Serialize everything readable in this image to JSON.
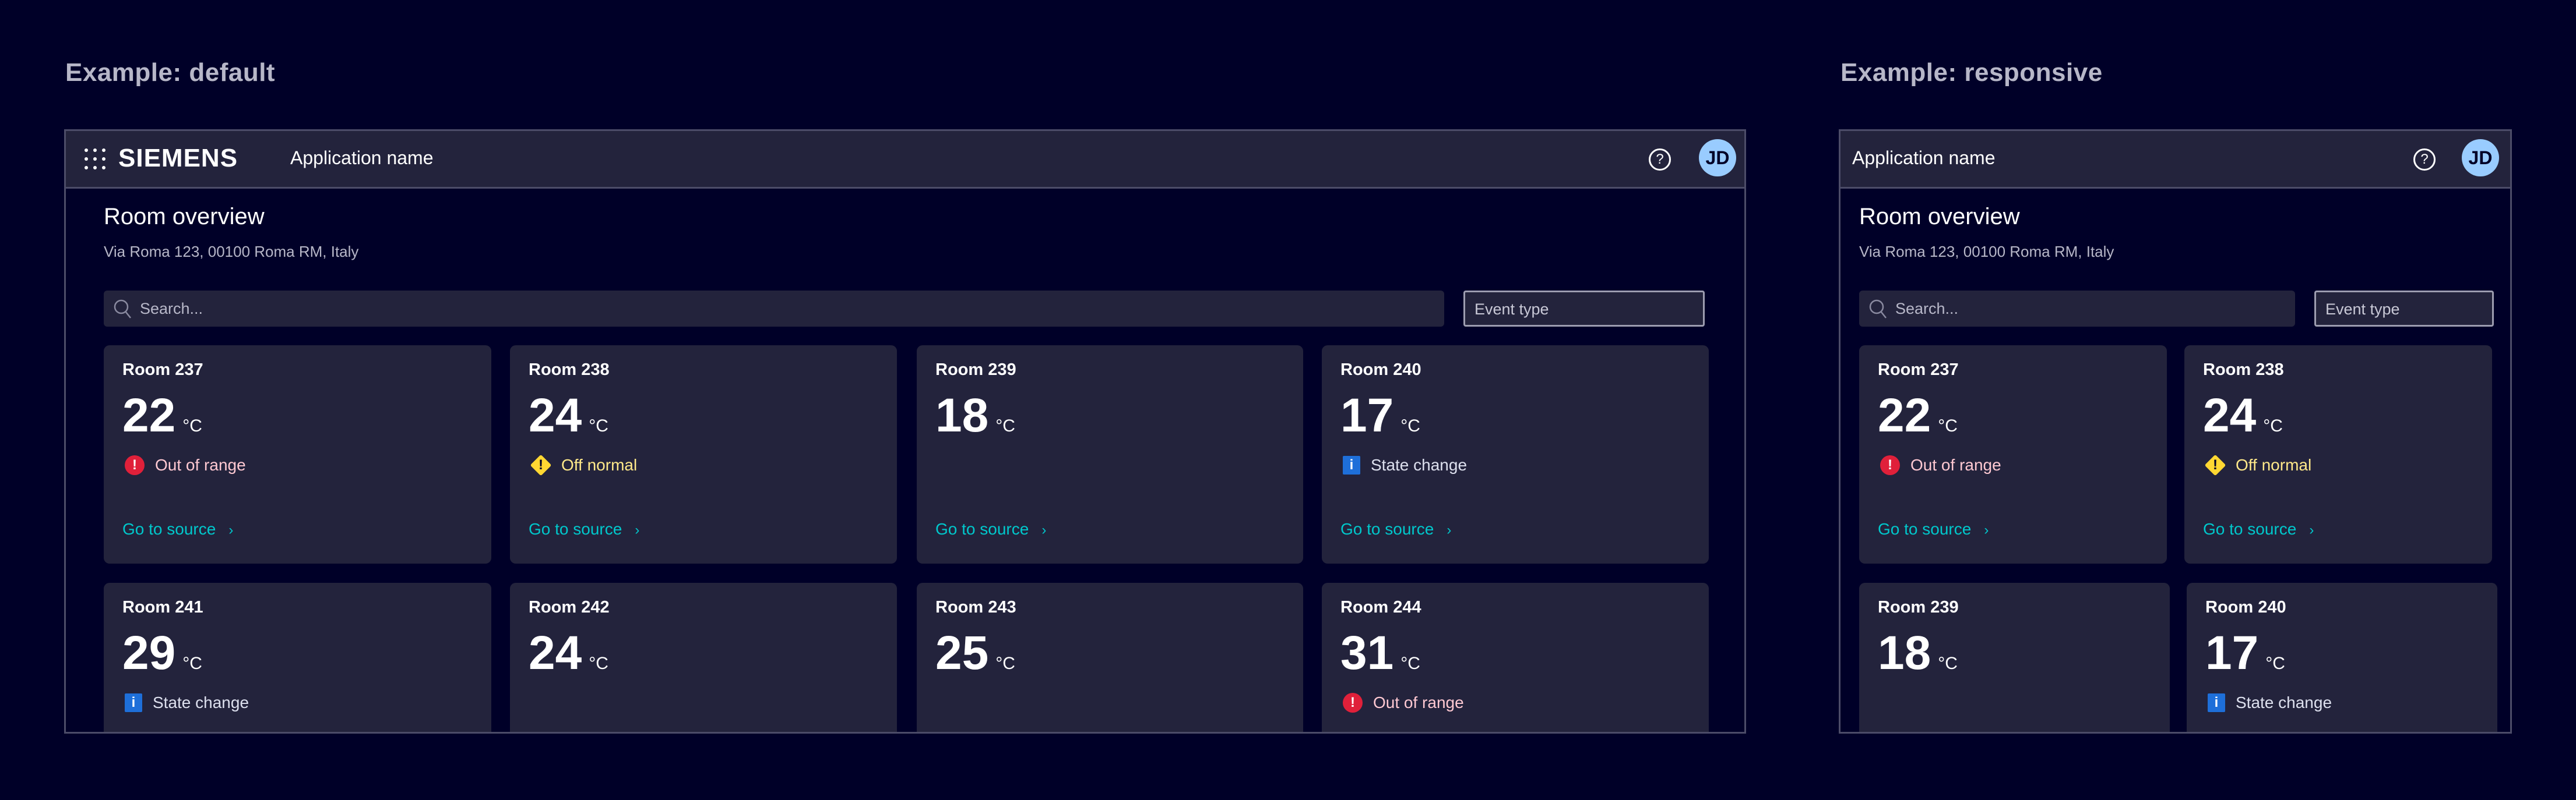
{
  "colors": {
    "background": "#000028",
    "surface": "#23233c",
    "accent": "#00c8cc",
    "alarm": "#e0203a",
    "warning": "#ffd732",
    "info": "#1e6fd9",
    "avatar": "#99ccff"
  },
  "examples": [
    {
      "label": "Example:  default",
      "header": {
        "brand": "SIEMENS",
        "app_name": "Application name",
        "help_icon": "question-circle-icon",
        "avatar_initials": "JD",
        "launcher_icon": "grid-dots-icon"
      },
      "page": {
        "title": "Room overview",
        "address": "Via Roma 123, 00100 Roma RM, Italy"
      },
      "search": {
        "placeholder": "Search...",
        "icon": "search-icon"
      },
      "filter": {
        "placeholder": "Event type"
      },
      "cards": [
        {
          "room": "Room 237",
          "temp": "22",
          "unit": "°C",
          "status": "Out of range",
          "status_type": "alarm",
          "link": "Go to source"
        },
        {
          "room": "Room 238",
          "temp": "24",
          "unit": "°C",
          "status": "Off normal",
          "status_type": "warning",
          "link": "Go to source"
        },
        {
          "room": "Room 239",
          "temp": "18",
          "unit": "°C",
          "link": "Go to source"
        },
        {
          "room": "Room 240",
          "temp": "17",
          "unit": "°C",
          "status": "State change",
          "status_type": "info",
          "link": "Go to source"
        },
        {
          "room": "Room 241",
          "temp": "29",
          "unit": "°C",
          "status": "State change",
          "status_type": "info"
        },
        {
          "room": "Room 242",
          "temp": "24",
          "unit": "°C"
        },
        {
          "room": "Room 243",
          "temp": "25",
          "unit": "°C"
        },
        {
          "room": "Room 244",
          "temp": "31",
          "unit": "°C",
          "status": "Out of range",
          "status_type": "alarm"
        }
      ]
    },
    {
      "label": "Example:  responsive",
      "header": {
        "app_name": "Application name",
        "help_icon": "question-circle-icon",
        "avatar_initials": "JD"
      },
      "page": {
        "title": "Room overview",
        "address": "Via Roma 123, 00100 Roma RM, Italy"
      },
      "search": {
        "placeholder": "Search...",
        "icon": "search-icon"
      },
      "filter": {
        "placeholder": "Event type"
      },
      "cards": [
        {
          "room": "Room 237",
          "temp": "22",
          "unit": "°C",
          "status": "Out of range",
          "status_type": "alarm",
          "link": "Go to source"
        },
        {
          "room": "Room 238",
          "temp": "24",
          "unit": "°C",
          "status": "Off normal",
          "status_type": "warning",
          "link": "Go to source"
        },
        {
          "room": "Room 239",
          "temp": "18",
          "unit": "°C"
        },
        {
          "room": "Room 240",
          "temp": "17",
          "unit": "°C",
          "status": "State change",
          "status_type": "info"
        }
      ]
    }
  ]
}
